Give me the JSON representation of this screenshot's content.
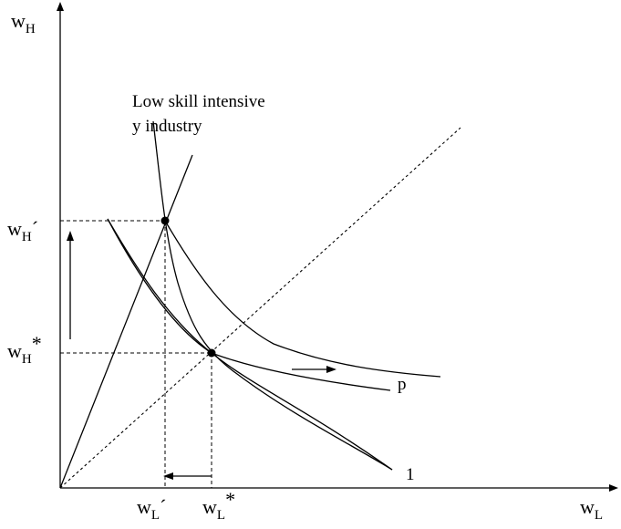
{
  "axes": {
    "y_label_main": "w",
    "y_label_sub": "H",
    "x_label_main": "w",
    "x_label_sub": "L"
  },
  "ticks": {
    "wh_prime_main": "w",
    "wh_prime_sub": "H",
    "wh_prime_mark": "´",
    "wh_star_main": "w",
    "wh_star_sub": "H",
    "wh_star_mark": "*",
    "wl_prime_main": "w",
    "wl_prime_sub": "L",
    "wl_prime_mark": "´",
    "wl_star_main": "w",
    "wl_star_sub": "L",
    "wl_star_mark": "*"
  },
  "annotation": {
    "line1": "Low skill intensive",
    "line2": "y industry"
  },
  "curves": {
    "p_label": "p",
    "one_label": "1"
  }
}
